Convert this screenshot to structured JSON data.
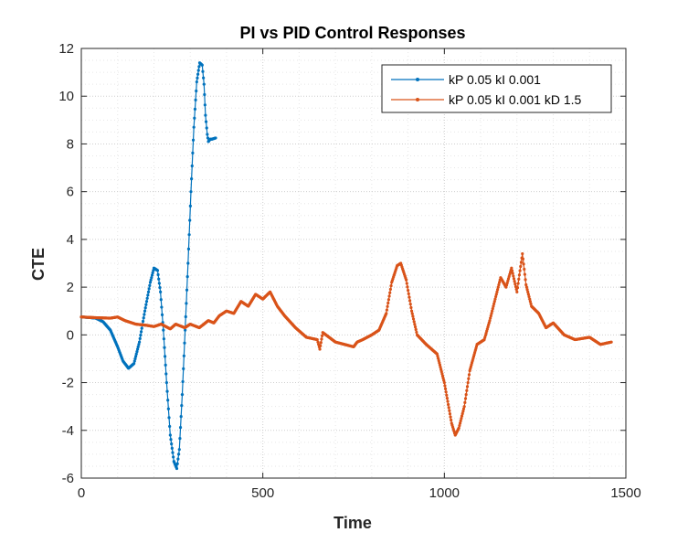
{
  "chart_data": {
    "type": "line",
    "title": "PI vs PID Control Responses",
    "xlabel": "Time",
    "ylabel": "CTE",
    "xlim": [
      0,
      1500
    ],
    "ylim": [
      -6,
      12
    ],
    "xticks": [
      0,
      500,
      1000,
      1500
    ],
    "yticks": [
      -6,
      -4,
      -2,
      0,
      2,
      4,
      6,
      8,
      10,
      12
    ],
    "grid": "on (major and minor, dotted)",
    "legend_placement": "top-right",
    "series": [
      {
        "name": "kP 0.05 kI 0.001",
        "color": "#0072BD",
        "marker": "point",
        "x": [
          0,
          20,
          40,
          60,
          80,
          100,
          115,
          130,
          145,
          160,
          175,
          190,
          200,
          210,
          218,
          226,
          235,
          245,
          255,
          263,
          270,
          278,
          286,
          294,
          302,
          310,
          318,
          326,
          333,
          338,
          342,
          347,
          350,
          355,
          360,
          370
        ],
        "y": [
          0.75,
          0.73,
          0.7,
          0.55,
          0.2,
          -0.5,
          -1.1,
          -1.4,
          -1.2,
          -0.3,
          1.0,
          2.2,
          2.8,
          2.7,
          1.8,
          0.2,
          -2.0,
          -4.2,
          -5.3,
          -5.6,
          -4.8,
          -2.5,
          0.2,
          3.0,
          6.0,
          8.7,
          10.6,
          11.4,
          11.3,
          10.5,
          9.2,
          8.4,
          8.1,
          8.2,
          8.2,
          8.25
        ]
      },
      {
        "name": "kP 0.05 kI 0.001 kD 1.5",
        "color": "#D95319",
        "marker": "point",
        "x": [
          0,
          40,
          80,
          100,
          120,
          150,
          180,
          200,
          220,
          245,
          260,
          285,
          300,
          325,
          350,
          365,
          380,
          400,
          420,
          440,
          460,
          480,
          500,
          520,
          540,
          560,
          590,
          620,
          650,
          657,
          665,
          700,
          750,
          760,
          775,
          800,
          820,
          840,
          855,
          870,
          880,
          895,
          910,
          925,
          950,
          980,
          1000,
          1020,
          1030,
          1040,
          1055,
          1070,
          1090,
          1110,
          1125,
          1140,
          1155,
          1170,
          1185,
          1200,
          1215,
          1225,
          1240,
          1260,
          1280,
          1300,
          1330,
          1360,
          1400,
          1430,
          1460
        ],
        "y": [
          0.75,
          0.72,
          0.7,
          0.75,
          0.6,
          0.45,
          0.4,
          0.35,
          0.45,
          0.25,
          0.45,
          0.3,
          0.45,
          0.3,
          0.6,
          0.5,
          0.8,
          1.0,
          0.9,
          1.4,
          1.2,
          1.7,
          1.5,
          1.8,
          1.2,
          0.8,
          0.3,
          -0.1,
          -0.2,
          -0.6,
          0.1,
          -0.3,
          -0.5,
          -0.3,
          -0.2,
          0.0,
          0.2,
          0.9,
          2.2,
          2.9,
          3.0,
          2.3,
          1.0,
          0.0,
          -0.4,
          -0.8,
          -2.0,
          -3.7,
          -4.2,
          -3.9,
          -3.0,
          -1.5,
          -0.4,
          -0.2,
          0.6,
          1.5,
          2.4,
          2.0,
          2.8,
          1.8,
          3.4,
          2.1,
          1.2,
          0.9,
          0.3,
          0.5,
          0.0,
          -0.2,
          -0.1,
          -0.4,
          -0.3
        ]
      }
    ]
  }
}
